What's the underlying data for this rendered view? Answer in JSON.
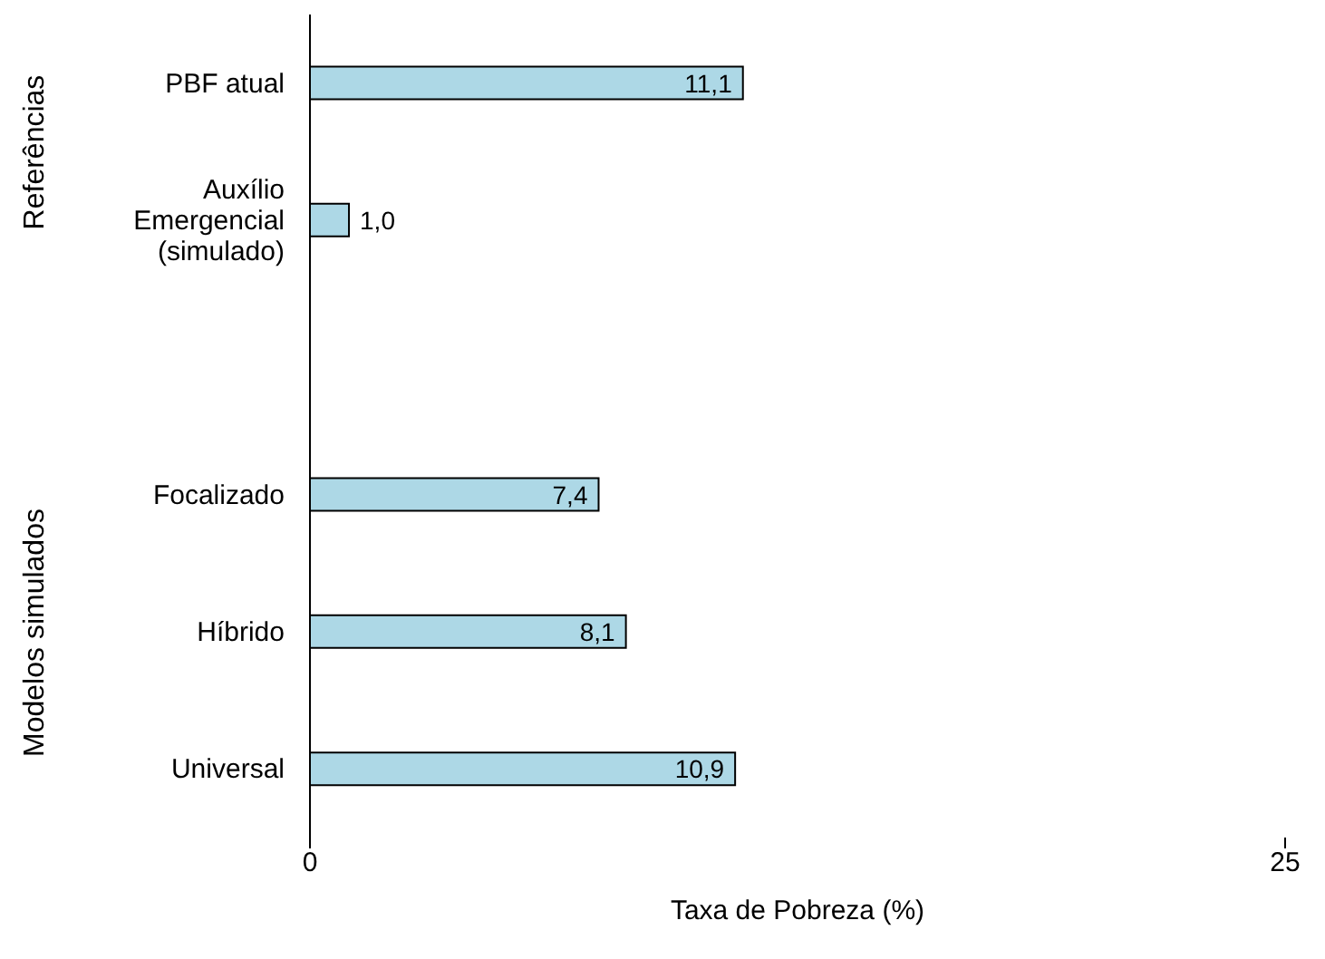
{
  "chart_data": {
    "type": "bar",
    "orientation": "horizontal",
    "xlabel": "Taxa de Pobreza (%)",
    "categories": [
      "PBF atual",
      "Auxílio Emergencial (simulado)",
      null,
      "Focalizado",
      "Híbrido",
      "Universal"
    ],
    "values": [
      11.1,
      1.0,
      null,
      7.4,
      8.1,
      10.9
    ],
    "value_labels": [
      "11,1",
      "1,0",
      null,
      "7,4",
      "8,1",
      "10,9"
    ],
    "color": "#add8e6",
    "xlim": [
      0,
      25
    ],
    "xticks": [
      0,
      25
    ],
    "annotations": [
      "Referências",
      "Modelos simulados"
    ]
  }
}
